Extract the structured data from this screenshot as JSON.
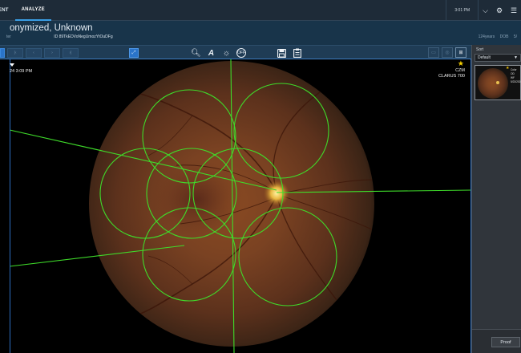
{
  "nav": {
    "tab_partial": "ENT",
    "tab_active": "ANALYZE",
    "clock": "3:01 PM",
    "icons": [
      "chevron-down-icon",
      "gear-icon",
      "list-icon"
    ]
  },
  "patient": {
    "name": "onymized, Unknown",
    "label_partial": "ter",
    "id": "ID 89TkEDVoNegUmozYtOuDFg",
    "age": "124years",
    "dob_label": "DOB",
    "dob_value_partial": "5/"
  },
  "toolbar": {
    "tools": [
      "zoom-in-icon",
      "annotate-icon",
      "brightness-icon",
      "off-icon"
    ],
    "off_label": "OFF",
    "file_tools": [
      "save-icon",
      "clipboard-icon"
    ]
  },
  "viewer": {
    "timestamp": "24 3:09 PM",
    "brand_line1": "CZM",
    "brand_line2": "CLARUS 700"
  },
  "sidebar": {
    "sort_label": "Sort",
    "sort_value": "Default",
    "thumb_info": [
      "Color",
      "OD",
      "WF",
      "5/23/2024"
    ],
    "proof_label": "Proof"
  },
  "colors": {
    "accent": "#3a9ee4",
    "overlay": "#3fdc2a",
    "star": "#f7cf00"
  }
}
